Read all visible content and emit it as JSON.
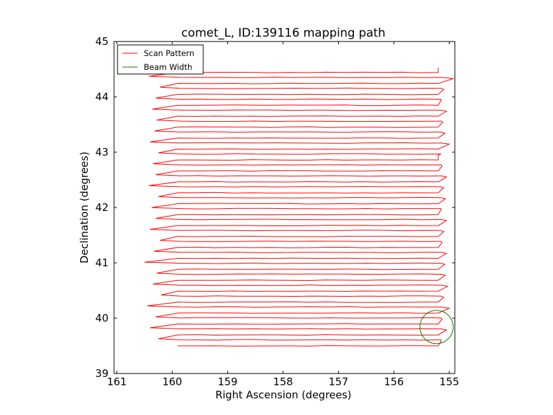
{
  "chart_data": {
    "type": "line",
    "title": "comet_L, ID:139116 mapping path",
    "xlabel": "Right Ascension (degrees)",
    "ylabel": "Declination (degrees)",
    "xlim": [
      161.05,
      154.9
    ],
    "ylim": [
      39,
      45
    ],
    "xticks": [
      161,
      160,
      159,
      158,
      157,
      156,
      155
    ],
    "yticks": [
      39,
      40,
      41,
      42,
      43,
      44,
      45
    ],
    "grid": false,
    "legend_position": "top-left",
    "series": [
      {
        "name": "Scan Pattern",
        "color": "#ff0000",
        "scan": {
          "dec_start": 39.5,
          "dec_end": 44.44,
          "row_count": 26,
          "dec_step": 0.19,
          "ra_row_start": 159.9,
          "ra_row_end": 155.2,
          "east_turns": [
            155.15,
            155.05,
            155.13,
            155.0,
            155.1,
            155.03,
            155.07,
            155.08,
            155.05,
            155.13,
            155.1,
            155.05,
            155.15,
            155.07,
            155.1,
            155.05,
            155.13,
            155.2,
            155.0,
            155.08,
            155.12,
            155.05,
            155.15,
            155.1,
            154.92,
            155.2
          ],
          "west_turns": [
            160.25,
            160.4,
            160.3,
            160.45,
            160.2,
            160.35,
            160.28,
            160.5,
            160.33,
            160.22,
            160.4,
            160.3,
            160.37,
            160.25,
            160.42,
            160.3,
            160.35,
            160.25,
            160.4,
            160.32,
            160.28,
            160.36,
            160.3,
            160.22,
            160.42
          ]
        }
      },
      {
        "name": "Beam Width",
        "color": "#008000",
        "circle": {
          "ra_center": 155.23,
          "dec_center": 39.84,
          "radius_deg": 0.3
        }
      }
    ]
  }
}
